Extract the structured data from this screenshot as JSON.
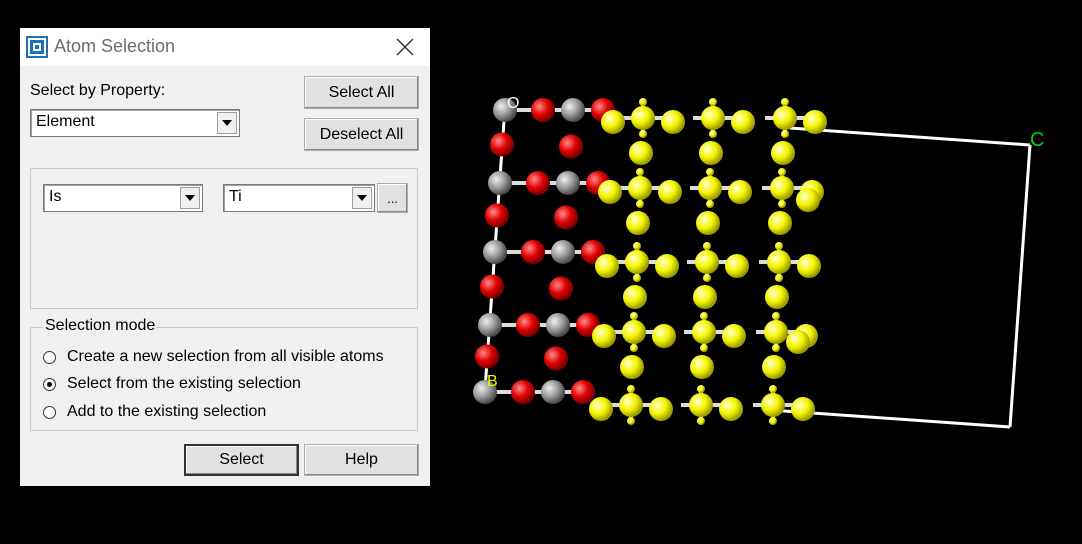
{
  "dialog": {
    "title": "Atom Selection",
    "select_by_property_label": "Select by Property:",
    "property_value": "Element",
    "select_all_label": "Select All",
    "deselect_all_label": "Deselect All",
    "condition_operator": "Is",
    "condition_value": "Ti",
    "ellipsis_label": "...",
    "selection_mode": {
      "legend": "Selection mode",
      "options": [
        {
          "label": "Create a new selection from all visible atoms",
          "selected": false
        },
        {
          "label": "Select from the existing selection",
          "selected": true
        },
        {
          "label": "Add to the existing selection",
          "selected": false
        }
      ]
    },
    "select_label": "Select",
    "help_label": "Help"
  },
  "viewer": {
    "axis_labels": {
      "c": "C",
      "o": "O",
      "b": "B"
    },
    "colors": {
      "oxygen": "#e00000",
      "titanium": "#9a9a9a",
      "selected": "#f5f500",
      "cell": "#ffffff",
      "axis_c": "#00d000"
    }
  }
}
